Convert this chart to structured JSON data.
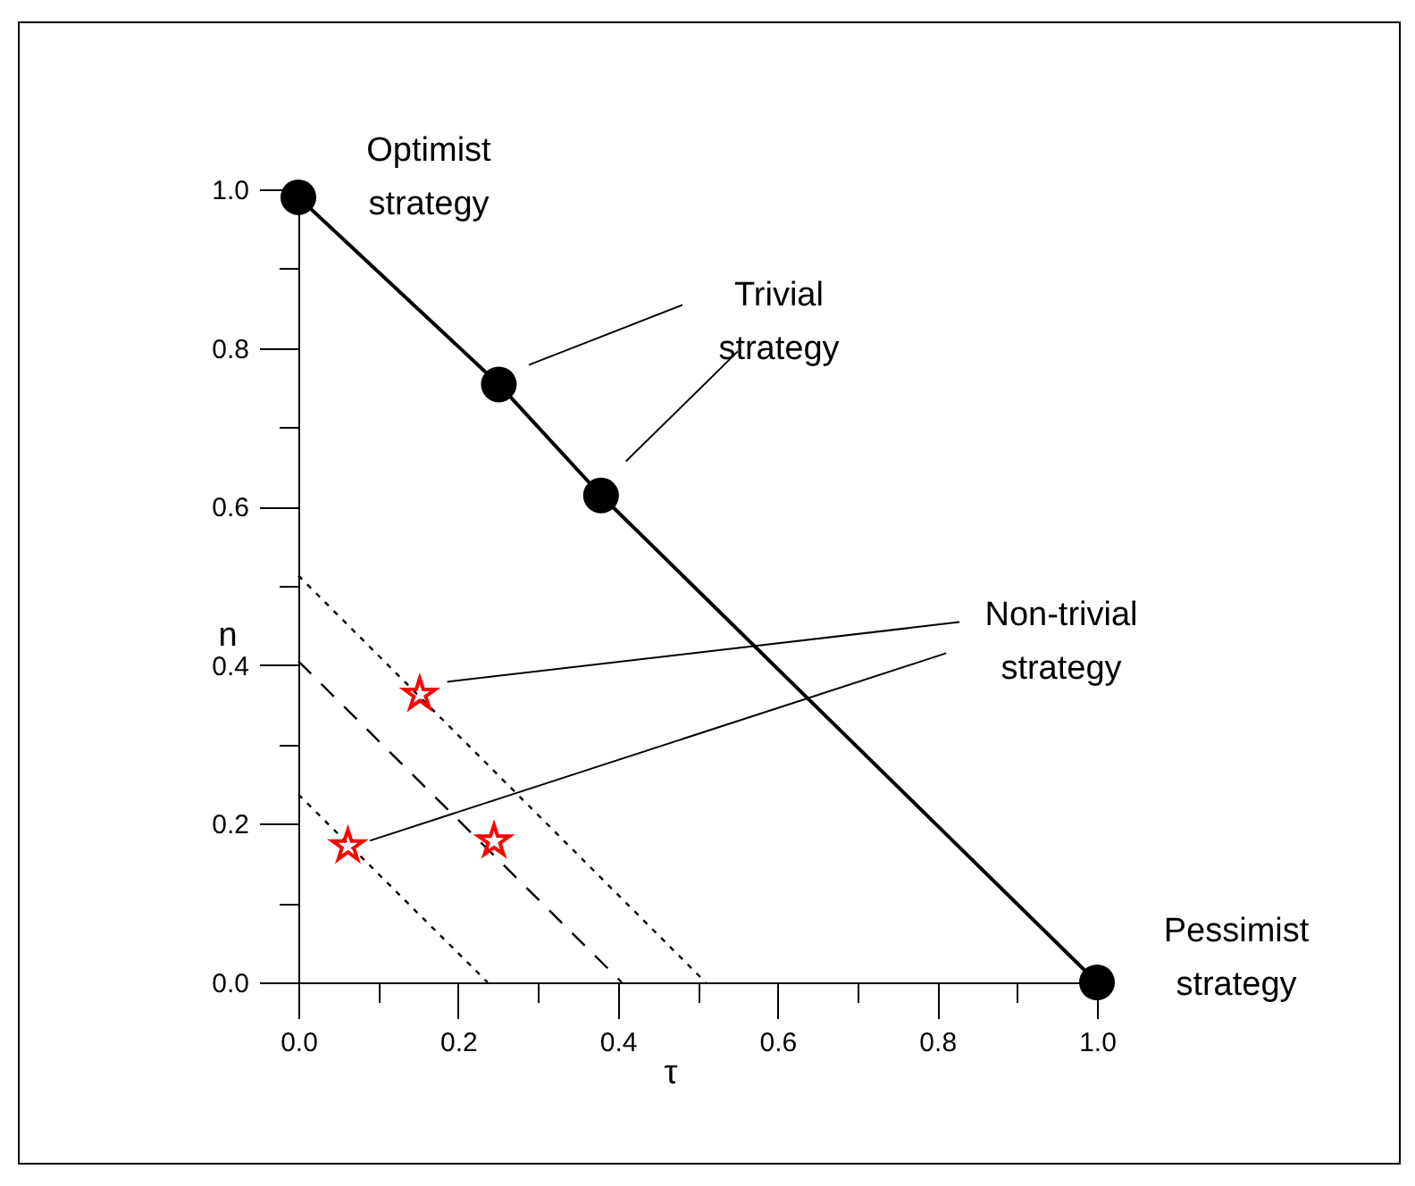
{
  "chart_data": {
    "type": "line",
    "xlabel": "τ",
    "ylabel": "n",
    "xlim": [
      0,
      1
    ],
    "ylim": [
      0,
      1
    ],
    "xticks": [
      {
        "value": 0,
        "label": "0.0"
      },
      {
        "value": 0.1,
        "label": null
      },
      {
        "value": 0.2,
        "label": "0.2"
      },
      {
        "value": 0.3,
        "label": null
      },
      {
        "value": 0.4,
        "label": "0.4"
      },
      {
        "value": 0.5,
        "label": null
      },
      {
        "value": 0.6,
        "label": "0.6"
      },
      {
        "value": 0.7,
        "label": null
      },
      {
        "value": 0.8,
        "label": "0.8"
      },
      {
        "value": 0.9,
        "label": null
      },
      {
        "value": 1,
        "label": "1.0"
      }
    ],
    "yticks": [
      {
        "value": 0,
        "label": "0.0"
      },
      {
        "value": 0.1,
        "label": null
      },
      {
        "value": 0.2,
        "label": "0.2"
      },
      {
        "value": 0.3,
        "label": null
      },
      {
        "value": 0.4,
        "label": "0.4"
      },
      {
        "value": 0.5,
        "label": null
      },
      {
        "value": 0.6,
        "label": "0.6"
      },
      {
        "value": 0.7,
        "label": null
      },
      {
        "value": 0.8,
        "label": "0.8"
      },
      {
        "value": 0.9,
        "label": null
      },
      {
        "value": 1,
        "label": "1.0"
      }
    ],
    "grid": false,
    "series": [
      {
        "color": "#000000",
        "line_style": "solid",
        "marker": "circle",
        "x": [
          0,
          0.251,
          0.379,
          1
        ],
        "values": [
          0.99,
          0.754,
          0.614,
          0
        ]
      },
      {
        "color": "#000000",
        "line_style": "dotted",
        "marker": "none",
        "x": [
          0,
          0.51
        ],
        "values": [
          0.513,
          0
        ]
      },
      {
        "color": "#000000",
        "line_style": "dashed",
        "marker": "none",
        "x": [
          0,
          0.405
        ],
        "values": [
          0.405,
          0
        ]
      },
      {
        "color": "#000000",
        "line_style": "dotted",
        "marker": "none",
        "x": [
          0,
          0.237
        ],
        "values": [
          0.237,
          0
        ]
      },
      {
        "type": "scatter",
        "color": "#ff0000",
        "marker": "star",
        "x": [
          0.152,
          0.062,
          0.245
        ],
        "values": [
          0.363,
          0.172,
          0.178
        ]
      }
    ],
    "annotations": [
      "Optimist\nstrategy",
      "Trivial\nstrategy",
      "Non-trivial\nstrategy",
      "Pessimist\nstrategy"
    ]
  }
}
